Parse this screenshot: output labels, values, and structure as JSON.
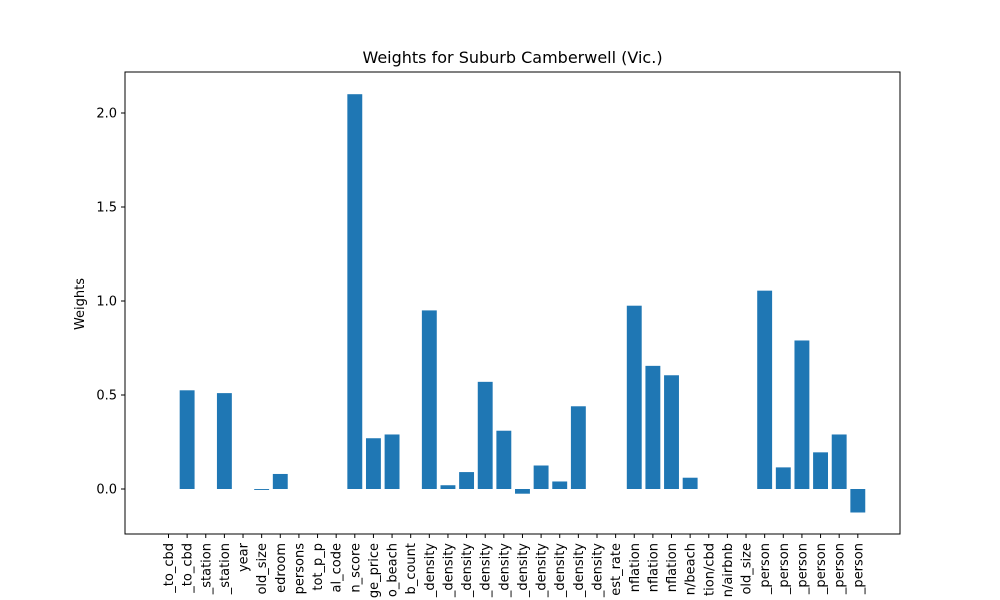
{
  "chart_data": {
    "type": "bar",
    "title": "Weights for Suburb Camberwell (Vic.)",
    "xlabel": "",
    "ylabel": "Weights",
    "ylim": [
      -0.23,
      2.22
    ],
    "yticks": [
      "0.0",
      "0.5",
      "1.0",
      "1.5",
      "2.0"
    ],
    "grid": false,
    "legend": "none",
    "bar_color": "#1f77b4",
    "categories": [
      "_to_cbd",
      "_to_cbd",
      "_station",
      "_station",
      "year",
      "old_size",
      "edroom",
      "persons",
      "tot_p_p",
      "al_code",
      "n_score",
      "ge_price",
      "o_beach",
      "b_count",
      "_density",
      "_density",
      "_density",
      "_density",
      "_density",
      "_density",
      "_density",
      "_density",
      "_density",
      "_density",
      "est_rate",
      "nflation",
      "nflation",
      "nflation",
      "n/beach",
      "tion/cbd",
      "n/airbnb",
      "old_size",
      "_person",
      "_person",
      "_person",
      "_person",
      "_person",
      "_person"
    ],
    "values": [
      0.0,
      0.525,
      0.0,
      0.51,
      0.0,
      -0.005,
      0.08,
      0.0,
      0.0,
      0.0,
      2.1,
      0.27,
      0.29,
      0.0,
      0.95,
      0.02,
      0.09,
      0.57,
      0.31,
      -0.025,
      0.125,
      0.04,
      0.44,
      0.0,
      0.0,
      0.975,
      0.655,
      0.605,
      0.06,
      0.0,
      0.0,
      0.0,
      1.055,
      0.115,
      0.79,
      0.195,
      0.29,
      -0.125
    ]
  }
}
